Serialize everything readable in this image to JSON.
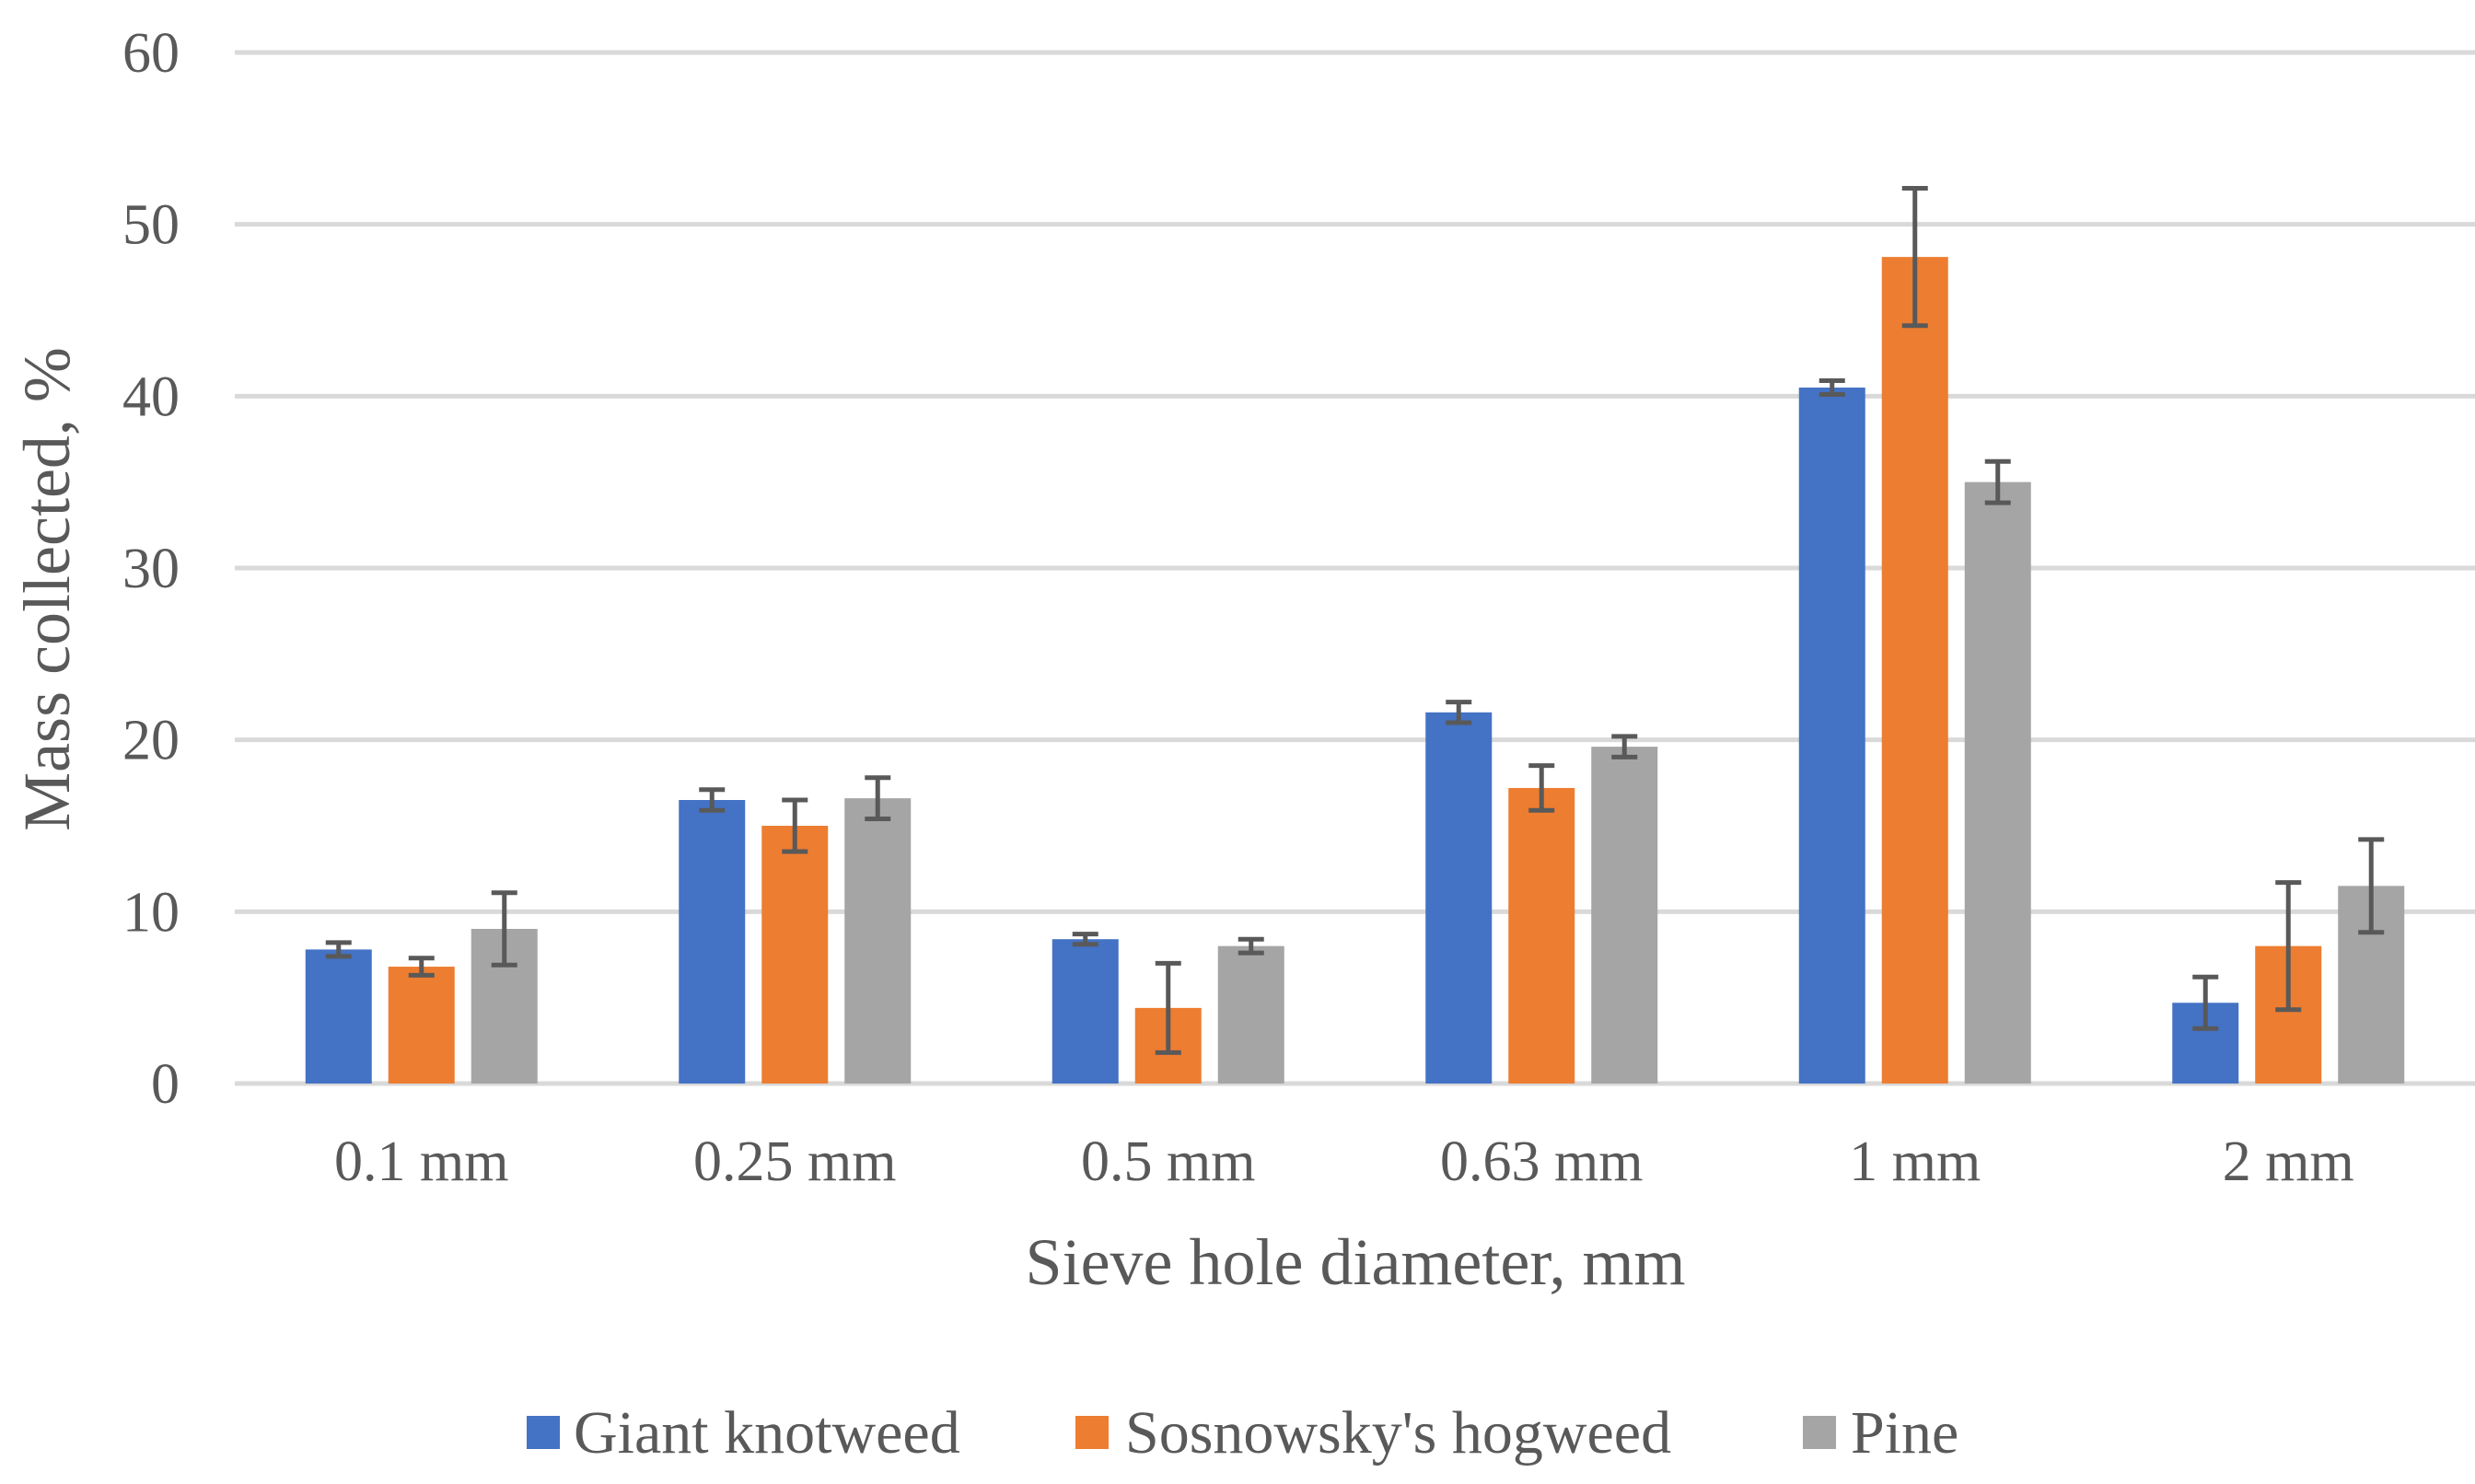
{
  "chart_data": {
    "type": "bar",
    "title": "",
    "xlabel": "Sieve hole diameter, mm",
    "ylabel": "Mass collected, %",
    "ylim": [
      0,
      60
    ],
    "yticks": [
      0,
      10,
      20,
      30,
      40,
      50,
      60
    ],
    "grid": true,
    "legend_position": "bottom",
    "categories": [
      "0.1 mm",
      "0.25 mm",
      "0.5 mm",
      "0.63 mm",
      "1 mm",
      "2 mm"
    ],
    "series": [
      {
        "name": "Giant knotweed",
        "color": "#4472C4",
        "values": [
          7.8,
          16.5,
          8.4,
          21.6,
          40.5,
          4.7
        ],
        "errors": [
          0.4,
          0.6,
          0.3,
          0.6,
          0.4,
          1.5
        ]
      },
      {
        "name": "Sosnowsky's hogweed",
        "color": "#ED7D31",
        "values": [
          6.8,
          15.0,
          4.4,
          17.2,
          48.1,
          8.0
        ],
        "errors": [
          0.5,
          1.5,
          2.6,
          1.3,
          4.0,
          3.7
        ]
      },
      {
        "name": "Pine",
        "color": "#A5A5A5",
        "values": [
          9.0,
          16.6,
          8.0,
          19.6,
          35.0,
          11.5
        ],
        "errors": [
          2.1,
          1.2,
          0.4,
          0.6,
          1.2,
          2.7
        ]
      }
    ]
  }
}
